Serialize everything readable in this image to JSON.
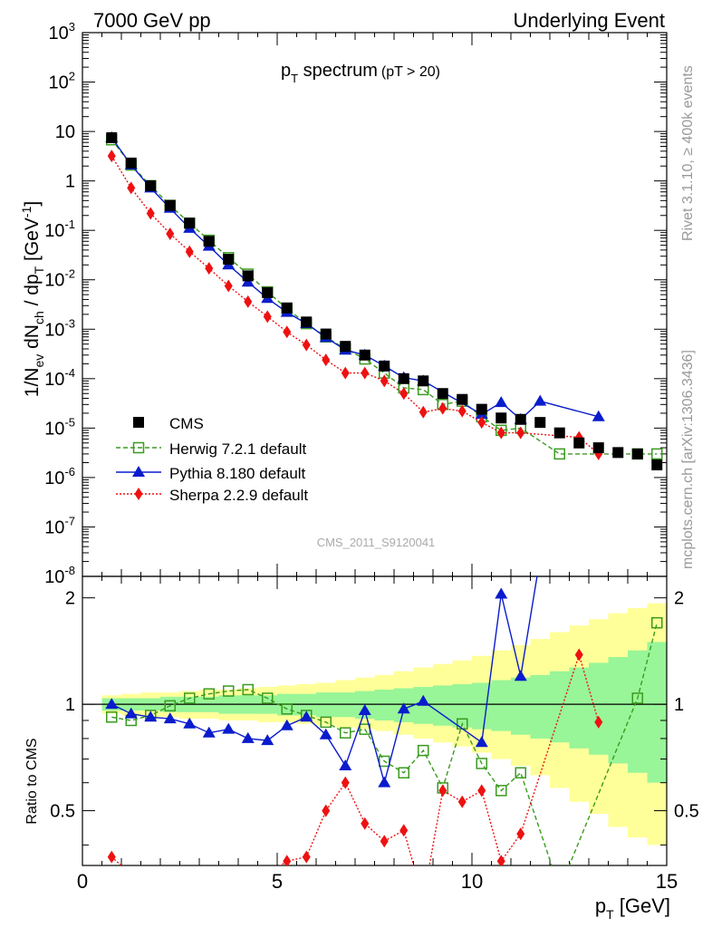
{
  "header": {
    "left": "7000 GeV pp",
    "right": "Underlying Event"
  },
  "side": {
    "rivet": "Rivet 3.1.10, ≥ 400k events",
    "mcplots": "mcplots.cern.ch [arXiv:1306.3436]"
  },
  "chart_data": {
    "type": "scatter",
    "title_main": "p",
    "title_sub": "T",
    "title_rest": " spectrum",
    "title_cut": "(pT > 20)",
    "ylabel": "1/N_ev dN_ch / dp_T [GeV^-1]",
    "xlabel": "p",
    "xlabel_sub": "T",
    "xlabel_unit": " [GeV]",
    "ratio_ylabel": "Ratio to CMS",
    "watermark": "CMS_2011_S9120041",
    "xlim": [
      0,
      15
    ],
    "ylim": [
      1e-08,
      1000.0
    ],
    "ylog": true,
    "ratio_ylim": [
      0.35,
      2.3
    ],
    "x_ticks": [
      "0",
      "5",
      "10",
      "15"
    ],
    "y_ticks": [
      "10^-8",
      "10^-7",
      "10^-6",
      "10^-5",
      "10^-4",
      "10^-3",
      "10^-2",
      "10^-1",
      "1",
      "10",
      "10^2",
      "10^3"
    ],
    "ratio_ticks": [
      "0.5",
      "1",
      "2"
    ],
    "legend": [
      {
        "name": "CMS"
      },
      {
        "name": "Herwig 7.2.1 default"
      },
      {
        "name": "Pythia 8.180 default"
      },
      {
        "name": "Sherpa 2.2.9 default"
      }
    ],
    "colors": {
      "cms": "#000000",
      "herwig": "#3a9b1f",
      "pythia": "#0a1ccc",
      "sherpa": "#ee1111",
      "band_inner": "#98f598",
      "band_outer": "#ffff99"
    },
    "cms": {
      "x": [
        0.75,
        1.25,
        1.75,
        2.25,
        2.75,
        3.25,
        3.75,
        4.25,
        4.75,
        5.25,
        5.75,
        6.25,
        6.75,
        7.25,
        7.75,
        8.25,
        8.75,
        9.25,
        9.75,
        10.25,
        10.75,
        11.25,
        11.75,
        12.25,
        12.75,
        13.25,
        13.75,
        14.25,
        14.75
      ],
      "y": [
        7.5,
        2.3,
        0.8,
        0.32,
        0.14,
        0.06,
        0.026,
        0.012,
        0.0055,
        0.0027,
        0.0014,
        0.0008,
        0.00045,
        0.0003,
        0.00018,
        0.0001,
        9e-05,
        5e-05,
        3.8e-05,
        2.4e-05,
        1.6e-05,
        1.5e-05,
        1.3e-05,
        8e-06,
        5e-06,
        4e-06,
        3.2e-06,
        3e-06,
        1.8e-06
      ]
    },
    "herwig": {
      "x": [
        0.75,
        1.25,
        1.75,
        2.25,
        2.75,
        3.25,
        3.75,
        4.25,
        4.75,
        5.25,
        5.75,
        6.25,
        6.75,
        7.25,
        7.75,
        8.25,
        8.75,
        9.25,
        9.75,
        10.25,
        10.75,
        11.25,
        12.25,
        14.25,
        14.75
      ],
      "y": [
        6.8,
        2.1,
        0.8,
        0.32,
        0.14,
        0.063,
        0.028,
        0.013,
        0.0057,
        0.0026,
        0.0013,
        0.0007,
        0.0004,
        0.00025,
        0.00013,
        6.5e-05,
        6e-05,
        3e-05,
        3.5e-05,
        1.7e-05,
        9e-06,
        1e-05,
        3e-06,
        3e-06,
        3e-06
      ],
      "ratio": [
        0.92,
        0.9,
        0.93,
        0.99,
        1.04,
        1.07,
        1.09,
        1.1,
        1.04,
        0.97,
        0.93,
        0.89,
        0.83,
        0.85,
        0.69,
        0.64,
        0.74,
        0.58,
        0.88,
        0.68,
        0.57,
        0.64,
        0.3,
        1.04,
        1.7
      ]
    },
    "pythia": {
      "x": [
        0.75,
        1.25,
        1.75,
        2.25,
        2.75,
        3.25,
        3.75,
        4.25,
        4.75,
        5.25,
        5.75,
        6.25,
        6.75,
        7.25,
        7.75,
        8.25,
        8.75,
        10.25,
        10.75,
        11.25,
        11.75,
        13.25
      ],
      "y": [
        7.5,
        2.1,
        0.72,
        0.28,
        0.11,
        0.048,
        0.02,
        0.009,
        0.0042,
        0.0022,
        0.0013,
        0.00068,
        0.00038,
        0.0003,
        0.00018,
        0.000105,
        9e-05,
        1.9e-05,
        3.3e-05,
        1.5e-05,
        3.5e-05,
        1.7e-05
      ],
      "ratio": [
        1.0,
        0.94,
        0.92,
        0.91,
        0.88,
        0.83,
        0.85,
        0.8,
        0.79,
        0.87,
        0.92,
        0.82,
        0.67,
        0.96,
        0.6,
        0.97,
        1.02,
        0.78,
        2.05,
        1.2,
        2.6,
        4.3
      ]
    },
    "sherpa": {
      "x": [
        0.75,
        1.25,
        1.75,
        2.25,
        2.75,
        3.25,
        3.75,
        4.25,
        4.75,
        5.25,
        5.75,
        6.25,
        6.75,
        7.25,
        7.75,
        8.25,
        8.75,
        9.25,
        9.75,
        10.25,
        10.75,
        11.25,
        12.75,
        13.25
      ],
      "y": [
        3.2,
        0.72,
        0.22,
        0.085,
        0.037,
        0.017,
        0.0075,
        0.0036,
        0.0018,
        0.00088,
        0.00048,
        0.00024,
        0.00013,
        0.00013,
        9e-05,
        5e-05,
        2.1e-05,
        2.5e-05,
        2.2e-05,
        1.3e-05,
        8e-06,
        8e-06,
        6.5e-06,
        3e-06
      ],
      "ratio": [
        0.37,
        0.33,
        0.27,
        0.26,
        0.26,
        0.29,
        0.29,
        0.3,
        0.33,
        0.36,
        0.37,
        0.5,
        0.6,
        0.46,
        0.41,
        0.44,
        0.28,
        0.57,
        0.53,
        0.57,
        0.36,
        0.43,
        1.38,
        0.89
      ]
    },
    "band": {
      "x_edges": [
        0.5,
        1.0,
        1.5,
        2.0,
        2.5,
        3.0,
        3.5,
        4.0,
        4.5,
        5.0,
        5.5,
        6.0,
        6.5,
        7.0,
        7.5,
        8.0,
        8.5,
        9.0,
        9.5,
        10.0,
        10.5,
        11.0,
        11.5,
        12.0,
        12.5,
        13.0,
        13.5,
        14.0,
        14.5,
        15.0
      ],
      "inner_lo": [
        0.96,
        0.96,
        0.96,
        0.95,
        0.95,
        0.95,
        0.94,
        0.94,
        0.94,
        0.93,
        0.93,
        0.92,
        0.92,
        0.91,
        0.9,
        0.89,
        0.88,
        0.87,
        0.86,
        0.85,
        0.84,
        0.82,
        0.8,
        0.78,
        0.75,
        0.72,
        0.68,
        0.64,
        0.6
      ],
      "inner_hi": [
        1.04,
        1.04,
        1.04,
        1.05,
        1.05,
        1.05,
        1.06,
        1.06,
        1.06,
        1.07,
        1.07,
        1.08,
        1.08,
        1.09,
        1.1,
        1.11,
        1.12,
        1.13,
        1.14,
        1.15,
        1.17,
        1.19,
        1.21,
        1.24,
        1.27,
        1.31,
        1.36,
        1.42,
        1.5
      ],
      "outer_lo": [
        0.94,
        0.93,
        0.92,
        0.92,
        0.91,
        0.91,
        0.9,
        0.9,
        0.89,
        0.89,
        0.88,
        0.87,
        0.86,
        0.85,
        0.84,
        0.82,
        0.8,
        0.78,
        0.76,
        0.73,
        0.7,
        0.67,
        0.63,
        0.58,
        0.53,
        0.49,
        0.45,
        0.42,
        0.4
      ],
      "outer_hi": [
        1.06,
        1.07,
        1.08,
        1.08,
        1.09,
        1.1,
        1.1,
        1.11,
        1.12,
        1.13,
        1.14,
        1.15,
        1.17,
        1.19,
        1.21,
        1.24,
        1.27,
        1.3,
        1.33,
        1.37,
        1.42,
        1.47,
        1.53,
        1.6,
        1.67,
        1.74,
        1.81,
        1.87,
        1.93
      ]
    }
  }
}
